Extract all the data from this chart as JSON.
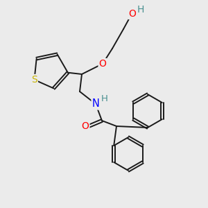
{
  "background_color": "#ebebeb",
  "bond_color": "#1a1a1a",
  "atom_colors": {
    "S": "#c8b400",
    "O": "#ff0000",
    "N": "#0000ff",
    "H_teal": "#4a9090",
    "C": "#1a1a1a"
  },
  "figsize": [
    3.0,
    3.0
  ],
  "dpi": 100
}
